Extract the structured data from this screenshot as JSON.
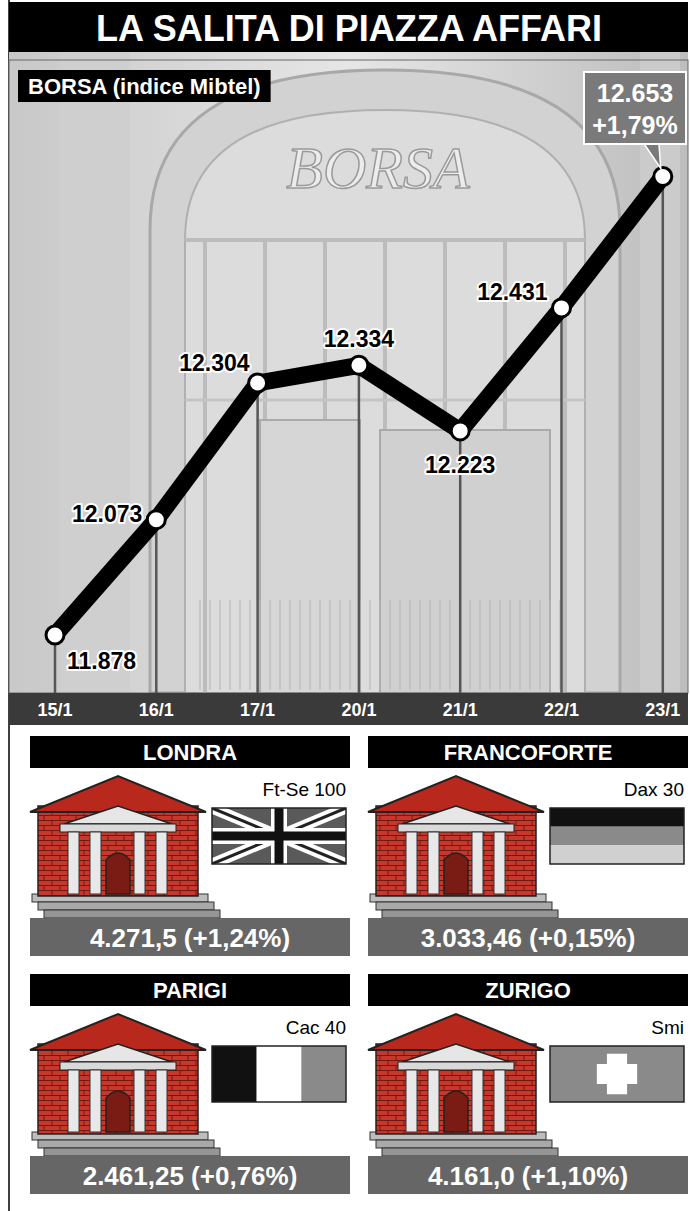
{
  "chart_data": {
    "type": "line",
    "title": "LA SALITA DI PIAZZA AFFARI",
    "subtitle": "BORSA (indice Mibtel)",
    "categories": [
      "15/1",
      "16/1",
      "17/1",
      "20/1",
      "21/1",
      "22/1",
      "23/1"
    ],
    "values": [
      11878,
      12073,
      12304,
      12334,
      12223,
      12431,
      12653
    ],
    "value_labels": [
      "11.878",
      "12.073",
      "12.304",
      "12.334",
      "12.223",
      "12.431",
      "12.653"
    ],
    "annotations": [
      "+1,79%",
      "BORSA"
    ],
    "color": "#000000",
    "marker": "circle",
    "data_labels": true,
    "tick_labels": "x",
    "grid": false,
    "ylim": [
      11780,
      12850
    ],
    "yticks": []
  },
  "markets": [
    {
      "city": "LONDRA",
      "index": "Ft-Se 100",
      "value": "4.271,5 (+1,24%)"
    },
    {
      "city": "FRANCOFORTE",
      "index": "Dax 30",
      "value": "3.033,46 (+0,15%)"
    },
    {
      "city": "PARIGI",
      "index": "Cac 40",
      "value": "2.461,25 (+0,76%)"
    },
    {
      "city": "ZURIGO",
      "index": "Smi",
      "value": "4.161,0 (+1,10%)"
    }
  ]
}
